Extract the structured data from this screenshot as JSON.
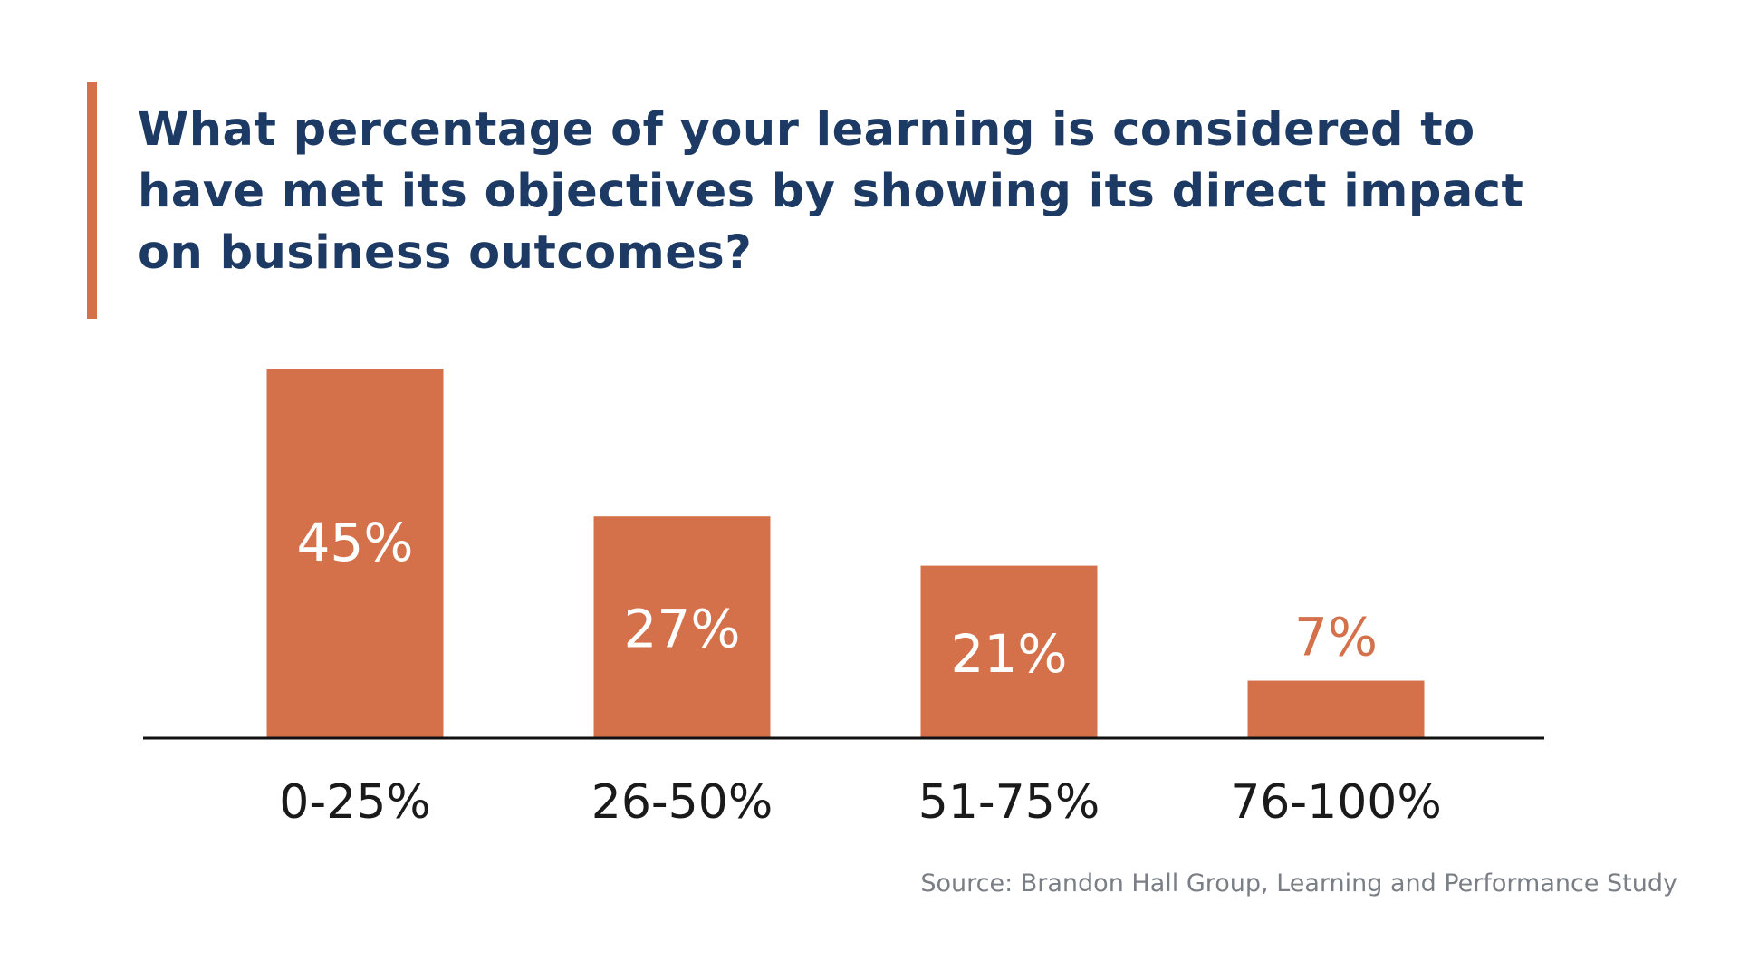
{
  "title_lines": [
    "What percentage of your learning is considered to",
    "have met its objectives by showing its direct impact",
    "on business outcomes?"
  ],
  "source": "Source: Brandon Hall Group, Learning and Performance Study",
  "colors": {
    "accent": "#d4714a",
    "title": "#1c3a63",
    "bar": "#d4714a",
    "bar_label_inside": "#ffffff",
    "axis": "#111111",
    "tick_label": "#1a1a1a"
  },
  "chart_data": {
    "type": "bar",
    "title": "What percentage of your learning is considered to have met its objectives by showing its direct impact on business outcomes?",
    "categories": [
      "0-25%",
      "26-50%",
      "51-75%",
      "76-100%"
    ],
    "values": [
      45,
      27,
      21,
      7
    ],
    "value_labels": [
      "45%",
      "27%",
      "21%",
      "7%"
    ],
    "xlabel": "",
    "ylabel": "",
    "ylim": [
      0,
      45
    ],
    "grid": false,
    "legend": "none"
  }
}
